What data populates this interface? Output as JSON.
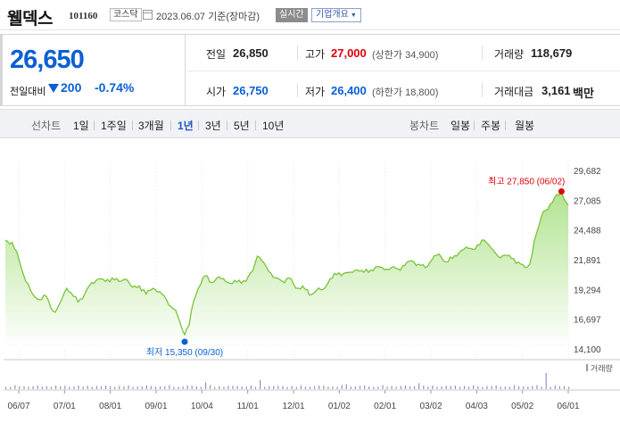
{
  "header": {
    "stock_name": "웰덱스",
    "stock_code": "101160",
    "market": "코스닥",
    "date_text": "2023.06.07 기준(장마감)",
    "realtime_label": "실시간",
    "company_info_label": "기업개요"
  },
  "quote": {
    "price": "26,650",
    "change_label": "전일대비",
    "change_value": "200",
    "change_pct": "-0.74%",
    "direction": "down",
    "prev_close_label": "전일",
    "prev_close": "26,850",
    "high_label": "고가",
    "high": "27,000",
    "upper_limit": "(상한가 34,900)",
    "volume_label": "거래량",
    "volume": "118,679",
    "open_label": "시가",
    "open": "26,750",
    "low_label": "저가",
    "low": "26,400",
    "lower_limit": "(하한가 18,800)",
    "trade_value_label": "거래대금",
    "trade_value": "3,161",
    "trade_value_unit": "백만"
  },
  "tabs": {
    "line_label": "선차트",
    "line_periods": [
      "1일",
      "1주일",
      "3개월",
      "1년",
      "3년",
      "5년",
      "10년"
    ],
    "selected": "1년",
    "candle_label": "봉차트",
    "candle_periods": [
      "일봉",
      "주봉",
      "월봉"
    ]
  },
  "colors": {
    "down": "#0a5fd4",
    "up": "#e0000a",
    "line": "#79c437",
    "area_top": "#b2e390",
    "area_bottom": "#ffffff"
  },
  "chart_data": {
    "type": "area",
    "y_ticks": [
      "29,682",
      "27,085",
      "24,488",
      "21,891",
      "19,294",
      "16,697",
      "14,100"
    ],
    "ylim": [
      14100,
      29682
    ],
    "x_ticks": [
      "06/07",
      "07/01",
      "08/01",
      "09/01",
      "10/04",
      "11/01",
      "12/01",
      "01/02",
      "02/01",
      "03/02",
      "04/03",
      "05/02",
      "06/01"
    ],
    "high_annotation": "최고 27,850 (06/02)",
    "low_annotation": "최저 15,350 (09/30)",
    "high_index": 245,
    "low_index": 79,
    "volume_legend": "거래량",
    "anchors": [
      [
        0,
        23600
      ],
      [
        3,
        23400
      ],
      [
        6,
        21900
      ],
      [
        9,
        20000
      ],
      [
        12,
        18900
      ],
      [
        15,
        18400
      ],
      [
        18,
        18700
      ],
      [
        20,
        17700
      ],
      [
        22,
        17300
      ],
      [
        24,
        18100
      ],
      [
        27,
        19400
      ],
      [
        30,
        18700
      ],
      [
        32,
        18200
      ],
      [
        35,
        18900
      ],
      [
        38,
        19900
      ],
      [
        41,
        20200
      ],
      [
        44,
        20000
      ],
      [
        47,
        20300
      ],
      [
        50,
        20000
      ],
      [
        53,
        20200
      ],
      [
        56,
        19500
      ],
      [
        59,
        19600
      ],
      [
        62,
        18900
      ],
      [
        65,
        19400
      ],
      [
        68,
        19100
      ],
      [
        71,
        18400
      ],
      [
        73,
        17800
      ],
      [
        75,
        17500
      ],
      [
        77,
        16400
      ],
      [
        79,
        15350
      ],
      [
        81,
        16200
      ],
      [
        83,
        18300
      ],
      [
        85,
        19400
      ],
      [
        88,
        20500
      ],
      [
        91,
        19900
      ],
      [
        94,
        20400
      ],
      [
        97,
        20000
      ],
      [
        100,
        19800
      ],
      [
        103,
        20100
      ],
      [
        106,
        20000
      ],
      [
        109,
        20900
      ],
      [
        111,
        22200
      ],
      [
        113,
        21800
      ],
      [
        116,
        20900
      ],
      [
        119,
        20300
      ],
      [
        122,
        20000
      ],
      [
        125,
        20300
      ],
      [
        128,
        19400
      ],
      [
        131,
        19600
      ],
      [
        134,
        18800
      ],
      [
        137,
        19200
      ],
      [
        140,
        19300
      ],
      [
        143,
        20200
      ],
      [
        146,
        20600
      ],
      [
        149,
        20700
      ],
      [
        152,
        20800
      ],
      [
        155,
        21000
      ],
      [
        158,
        20800
      ],
      [
        161,
        21000
      ],
      [
        164,
        21300
      ],
      [
        167,
        21000
      ],
      [
        170,
        21200
      ],
      [
        173,
        21100
      ],
      [
        176,
        21400
      ],
      [
        179,
        21800
      ],
      [
        182,
        21500
      ],
      [
        185,
        21200
      ],
      [
        188,
        21900
      ],
      [
        191,
        22400
      ],
      [
        194,
        21700
      ],
      [
        197,
        22000
      ],
      [
        200,
        22500
      ],
      [
        203,
        23000
      ],
      [
        206,
        22800
      ],
      [
        209,
        23200
      ],
      [
        211,
        23600
      ],
      [
        213,
        23200
      ],
      [
        215,
        22700
      ],
      [
        217,
        22200
      ],
      [
        220,
        22300
      ],
      [
        223,
        22000
      ],
      [
        226,
        21700
      ],
      [
        229,
        21200
      ],
      [
        231,
        21500
      ],
      [
        233,
        23500
      ],
      [
        235,
        24800
      ],
      [
        237,
        26100
      ],
      [
        239,
        26300
      ],
      [
        241,
        26900
      ],
      [
        243,
        27600
      ],
      [
        245,
        27850
      ],
      [
        247,
        26900
      ],
      [
        248,
        26650
      ]
    ],
    "volume_spikes": [
      [
        15,
        0.38
      ],
      [
        63,
        1.0
      ],
      [
        88,
        0.25
      ],
      [
        112,
        0.35
      ],
      [
        150,
        0.18
      ],
      [
        182,
        0.22
      ],
      [
        213,
        0.55
      ],
      [
        233,
        1.0
      ],
      [
        235,
        0.8
      ],
      [
        238,
        0.6
      ],
      [
        241,
        0.45
      ]
    ]
  }
}
